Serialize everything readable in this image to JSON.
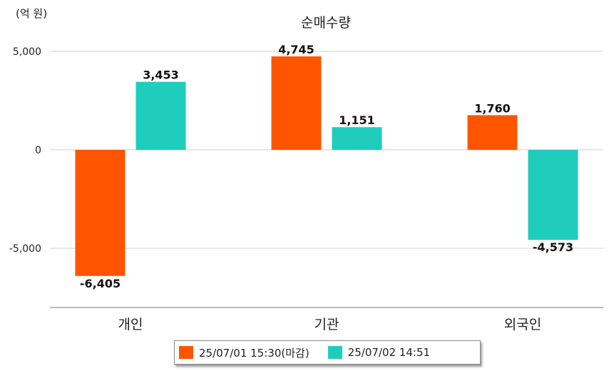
{
  "chart_data": {
    "type": "bar",
    "title": "순매수량",
    "unit_label": "(억 원)",
    "categories": [
      "개인",
      "기관",
      "외국인"
    ],
    "series": [
      {
        "name": "25/07/01 15:30(마감)",
        "color": "#FF5500",
        "values": [
          -6405,
          4745,
          1760
        ],
        "labels": [
          "-6,405",
          "4,745",
          "1,760"
        ]
      },
      {
        "name": "25/07/02 14:51",
        "color": "#1FCDBD",
        "values": [
          3453,
          1151,
          -4573
        ],
        "labels": [
          "3,453",
          "1,151",
          "-4,573"
        ]
      }
    ],
    "yticks": [
      5000,
      0,
      -5000
    ],
    "ytick_labels": [
      "5,000",
      "0",
      "-5,000"
    ],
    "ylim": [
      -8000,
      5000
    ],
    "grid": true,
    "legend_position": "bottom"
  }
}
